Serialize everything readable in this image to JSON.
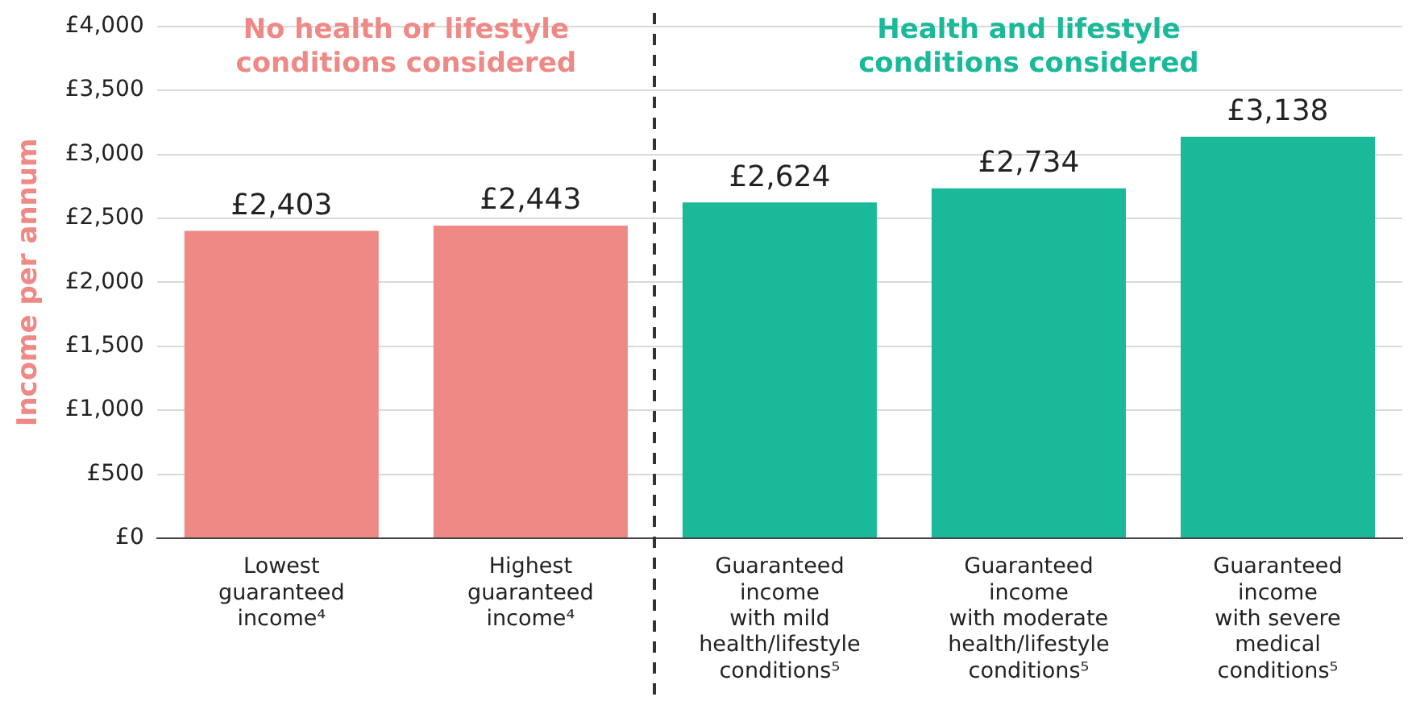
{
  "chart_data": {
    "type": "bar",
    "ylabel": "Income per annum",
    "categories": [
      "Lowest\nguaranteed\nincome⁴",
      "Highest\nguaranteed\nincome⁴",
      "Guaranteed\nincome\nwith mild\nhealth/lifestyle\nconditions⁵",
      "Guaranteed\nincome\nwith moderate\nhealth/lifestyle\nconditions⁵",
      "Guaranteed\nincome\nwith severe\nmedical\nconditions⁵"
    ],
    "values": [
      2403,
      2443,
      2624,
      2734,
      3138
    ],
    "colors": [
      "#ee8986",
      "#ee8986",
      "#19b999",
      "#19b999",
      "#19b999"
    ],
    "value_labels": [
      "£2,403",
      "£2,443",
      "£2,624",
      "£2,734",
      "£3,138"
    ],
    "ylim": [
      0,
      4000
    ],
    "yticks": [
      {
        "value": 0,
        "label": "£0"
      },
      {
        "value": 500,
        "label": "£500"
      },
      {
        "value": 1000,
        "label": "£1,000"
      },
      {
        "value": 1500,
        "label": "£1,500"
      },
      {
        "value": 2000,
        "label": "£2,000"
      },
      {
        "value": 2500,
        "label": "£2,500"
      },
      {
        "value": 3000,
        "label": "£3,000"
      },
      {
        "value": 3500,
        "label": "£3,500"
      },
      {
        "value": 4000,
        "label": "£4,000"
      }
    ],
    "grid": "y",
    "annotations": [
      "No health or lifestyle\nconditions considered",
      "Health and lifestyle\nconditions considered"
    ]
  }
}
